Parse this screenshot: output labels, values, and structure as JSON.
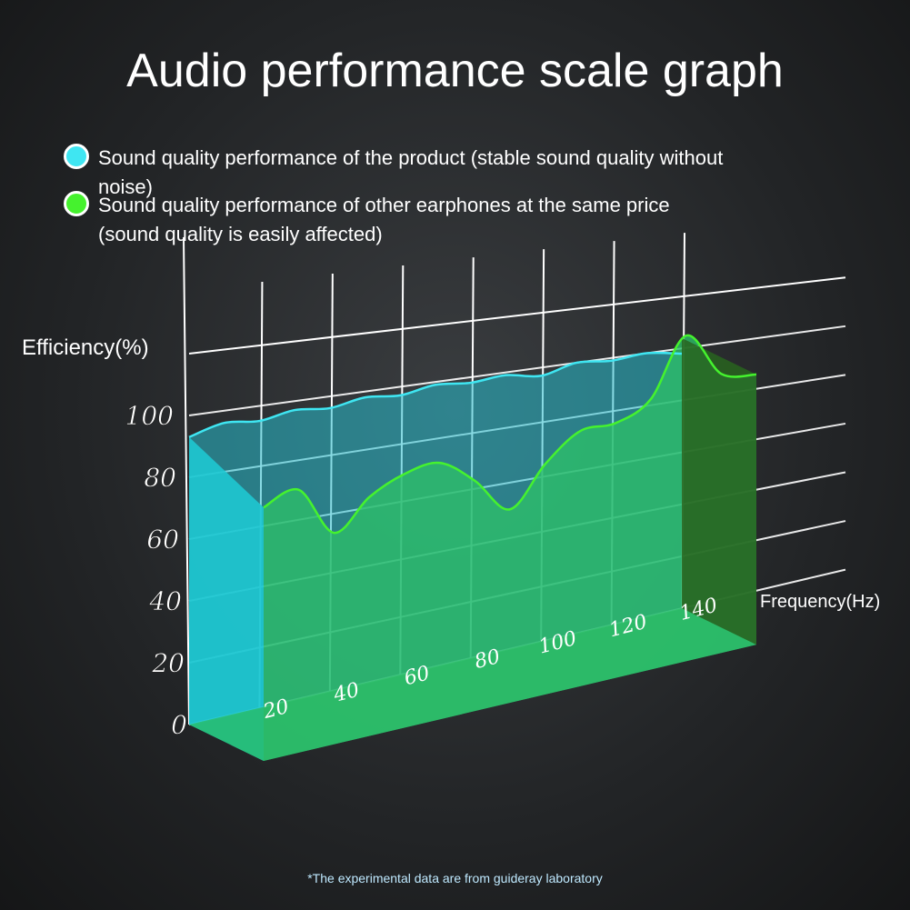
{
  "chart_data": {
    "type": "area",
    "title": "Audio performance scale graph",
    "y_label": "Efficiency(%)",
    "x_label": "Frequency(Hz)",
    "footnote": "*The experimental data are from guideray laboratory",
    "x": [
      0,
      10,
      20,
      30,
      40,
      50,
      60,
      70,
      80,
      90,
      100,
      110,
      120,
      130,
      140
    ],
    "series": [
      {
        "name": "Sound quality performance of the product (stable sound quality without noise)",
        "color": "#3fe6f2",
        "values": [
          93,
          96,
          95,
          97,
          96,
          98,
          97,
          99,
          98,
          99,
          97,
          100,
          99,
          100,
          98
        ]
      },
      {
        "name": "Sound quality performance of other earphones at the same price (sound quality is easily affected)",
        "color": "#45f22e",
        "values": [
          82,
          86,
          70,
          80,
          86,
          88,
          80,
          68,
          82,
          92,
          93,
          100,
          122,
          106,
          104
        ]
      }
    ],
    "xlim": [
      0,
      140
    ],
    "ylim": [
      0,
      120
    ],
    "xticks": [
      20,
      40,
      60,
      80,
      100,
      120,
      140
    ],
    "yticks": [
      0,
      20,
      40,
      60,
      80,
      100
    ],
    "grid": true
  }
}
